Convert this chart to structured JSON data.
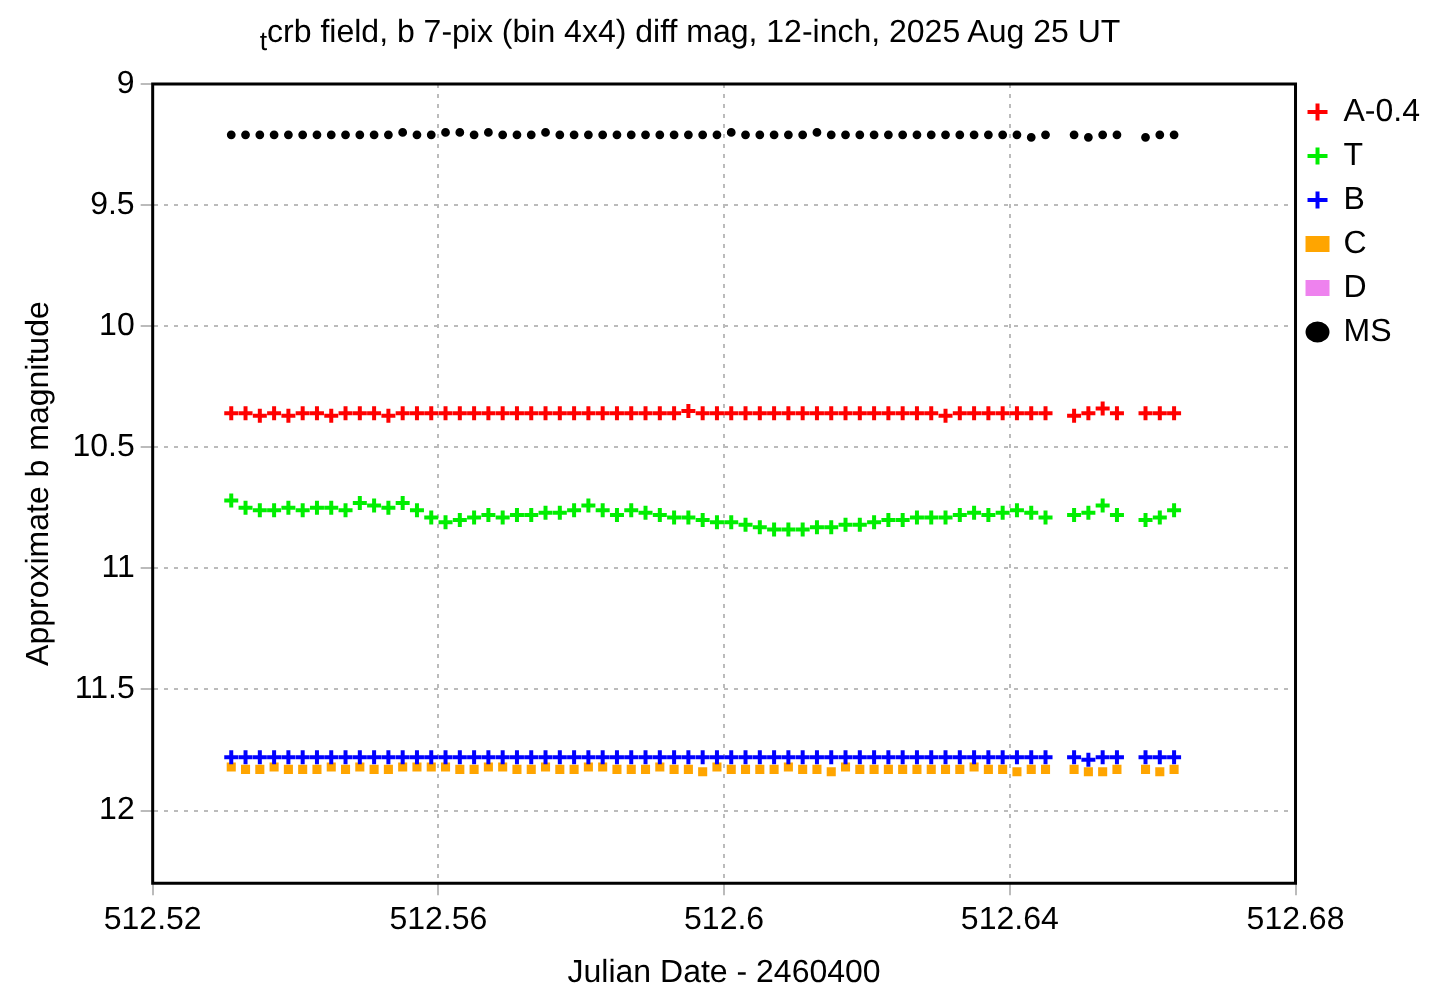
{
  "chart_data": {
    "type": "scatter",
    "title": "$_{t}$crb field, b 7-pix (bin 4x4) diff mag, 12-inch, 2025 Aug 25 UT",
    "xlabel": "Julian Date - 2460400",
    "ylabel": "Approximate b magnitude",
    "x": [
      512.531,
      512.533,
      512.535,
      512.537,
      512.539,
      512.541,
      512.543,
      512.545,
      512.547,
      512.549,
      512.551,
      512.553,
      512.555,
      512.557,
      512.559,
      512.561,
      512.563,
      512.565,
      512.567,
      512.569,
      512.571,
      512.573,
      512.575,
      512.577,
      512.579,
      512.581,
      512.583,
      512.585,
      512.587,
      512.589,
      512.591,
      512.593,
      512.595,
      512.597,
      512.599,
      512.601,
      512.603,
      512.605,
      512.607,
      512.609,
      512.611,
      512.613,
      512.615,
      512.617,
      512.619,
      512.621,
      512.623,
      512.625,
      512.627,
      512.629,
      512.631,
      512.633,
      512.635,
      512.637,
      512.639,
      512.641,
      512.643,
      512.645,
      512.647,
      512.649,
      512.651,
      512.653,
      512.655,
      512.657,
      512.659,
      512.661,
      512.663
    ],
    "series": [
      {
        "name": "A-0.4",
        "color": "#ff0000",
        "marker": "cross",
        "values": [
          10.36,
          10.36,
          10.37,
          10.36,
          10.37,
          10.36,
          10.36,
          10.37,
          10.36,
          10.36,
          10.36,
          10.37,
          10.36,
          10.36,
          10.36,
          10.36,
          10.36,
          10.36,
          10.36,
          10.36,
          10.36,
          10.36,
          10.36,
          10.36,
          10.36,
          10.36,
          10.36,
          10.36,
          10.36,
          10.36,
          10.36,
          10.36,
          10.35,
          10.36,
          10.36,
          10.36,
          10.36,
          10.36,
          10.36,
          10.36,
          10.36,
          10.36,
          10.36,
          10.36,
          10.36,
          10.36,
          10.36,
          10.36,
          10.36,
          10.36,
          10.37,
          10.36,
          10.36,
          10.36,
          10.36,
          10.36,
          10.36,
          10.36,
          null,
          10.37,
          10.36,
          10.34,
          10.36,
          null,
          10.36,
          10.36,
          10.36
        ]
      },
      {
        "name": "T",
        "color": "#00ee00",
        "marker": "cross",
        "values": [
          10.72,
          10.75,
          10.76,
          10.76,
          10.75,
          10.76,
          10.75,
          10.75,
          10.76,
          10.73,
          10.74,
          10.75,
          10.73,
          10.76,
          10.79,
          10.81,
          10.8,
          10.79,
          10.78,
          10.79,
          10.78,
          10.78,
          10.77,
          10.77,
          10.76,
          10.74,
          10.76,
          10.78,
          10.76,
          10.77,
          10.78,
          10.79,
          10.79,
          10.8,
          10.81,
          10.81,
          10.82,
          10.83,
          10.84,
          10.84,
          10.84,
          10.83,
          10.83,
          10.82,
          10.82,
          10.81,
          10.8,
          10.8,
          10.79,
          10.79,
          10.79,
          10.78,
          10.77,
          10.78,
          10.77,
          10.76,
          10.77,
          10.79,
          null,
          10.78,
          10.77,
          10.74,
          10.78,
          null,
          10.8,
          10.79,
          10.76
        ]
      },
      {
        "name": "B",
        "color": "#0000ff",
        "marker": "cross",
        "values": [
          11.78,
          11.78,
          11.78,
          11.78,
          11.78,
          11.78,
          11.78,
          11.78,
          11.78,
          11.78,
          11.78,
          11.78,
          11.78,
          11.78,
          11.78,
          11.78,
          11.78,
          11.78,
          11.78,
          11.78,
          11.78,
          11.78,
          11.78,
          11.78,
          11.78,
          11.78,
          11.78,
          11.78,
          11.78,
          11.78,
          11.78,
          11.78,
          11.78,
          11.78,
          11.78,
          11.78,
          11.78,
          11.78,
          11.78,
          11.78,
          11.78,
          11.78,
          11.78,
          11.78,
          11.78,
          11.78,
          11.78,
          11.78,
          11.78,
          11.78,
          11.78,
          11.78,
          11.78,
          11.78,
          11.78,
          11.78,
          11.78,
          11.78,
          null,
          11.78,
          11.79,
          11.78,
          11.78,
          null,
          11.78,
          11.78,
          11.78
        ]
      },
      {
        "name": "C",
        "color": "#ffa500",
        "marker": "square",
        "values": [
          11.82,
          11.83,
          11.83,
          11.82,
          11.83,
          11.83,
          11.83,
          11.82,
          11.83,
          11.82,
          11.83,
          11.83,
          11.82,
          11.82,
          11.82,
          11.82,
          11.83,
          11.83,
          11.82,
          11.82,
          11.83,
          11.83,
          11.82,
          11.83,
          11.83,
          11.82,
          11.82,
          11.83,
          11.83,
          11.83,
          11.82,
          11.83,
          11.83,
          11.84,
          11.82,
          11.83,
          11.83,
          11.83,
          11.83,
          11.82,
          11.83,
          11.83,
          11.84,
          11.82,
          11.83,
          11.83,
          11.83,
          11.83,
          11.83,
          11.83,
          11.83,
          11.83,
          11.82,
          11.83,
          11.83,
          11.84,
          11.83,
          11.83,
          null,
          11.83,
          11.84,
          11.84,
          11.83,
          null,
          11.83,
          11.84,
          11.83
        ]
      },
      {
        "name": "D",
        "color": "#ee82ee",
        "marker": "square",
        "values": [
          null,
          null,
          null,
          null,
          null,
          null,
          null,
          null,
          null,
          null,
          null,
          null,
          null,
          null,
          null,
          null,
          null,
          null,
          null,
          null,
          null,
          null,
          null,
          null,
          null,
          null,
          null,
          null,
          null,
          null,
          null,
          null,
          null,
          null,
          null,
          null,
          null,
          null,
          null,
          null,
          null,
          null,
          null,
          null,
          null,
          null,
          null,
          null,
          null,
          null,
          null,
          null,
          null,
          null,
          null,
          null,
          null,
          null,
          null,
          null,
          null,
          null,
          null,
          null,
          null,
          null,
          null
        ]
      },
      {
        "name": "MS",
        "color": "#000000",
        "marker": "circle",
        "values": [
          9.21,
          9.21,
          9.21,
          9.21,
          9.21,
          9.21,
          9.21,
          9.21,
          9.21,
          9.21,
          9.21,
          9.21,
          9.2,
          9.21,
          9.21,
          9.2,
          9.2,
          9.21,
          9.2,
          9.21,
          9.21,
          9.21,
          9.2,
          9.21,
          9.21,
          9.21,
          9.21,
          9.21,
          9.21,
          9.21,
          9.21,
          9.21,
          9.21,
          9.21,
          9.21,
          9.2,
          9.21,
          9.21,
          9.21,
          9.21,
          9.21,
          9.2,
          9.21,
          9.21,
          9.21,
          9.21,
          9.21,
          9.21,
          9.21,
          9.21,
          9.21,
          9.21,
          9.21,
          9.21,
          9.21,
          9.21,
          9.22,
          9.21,
          null,
          9.21,
          9.22,
          9.21,
          9.21,
          null,
          9.22,
          9.21,
          9.21
        ]
      }
    ],
    "xlim": [
      512.52,
      512.68
    ],
    "xticks": [
      512.52,
      512.56,
      512.6,
      512.64,
      512.68
    ],
    "ylim": [
      12.3,
      9
    ],
    "yticks": [
      9,
      9.5,
      10,
      10.5,
      11,
      11.5,
      12
    ],
    "grid": true,
    "legend": "top right"
  }
}
